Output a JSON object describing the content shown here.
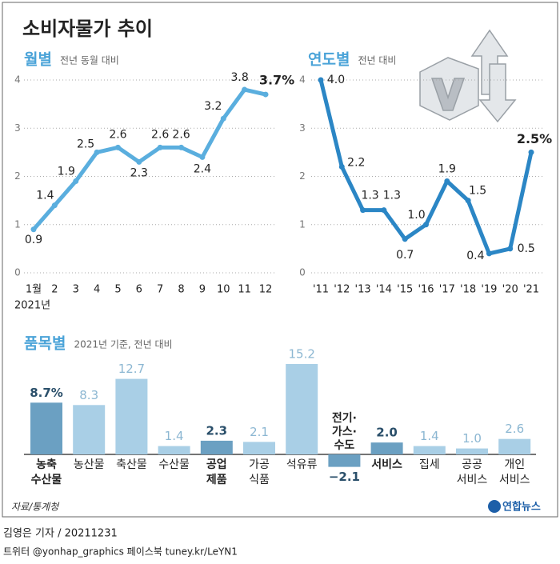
{
  "title": "소비자물가 추이",
  "chart_data": [
    {
      "type": "line",
      "title": "월별",
      "subtitle": "전년 동월 대비",
      "categories": [
        "1월",
        "2",
        "3",
        "4",
        "5",
        "6",
        "7",
        "8",
        "9",
        "10",
        "11",
        "12"
      ],
      "xlabel": "2021년",
      "values": [
        0.9,
        1.4,
        1.9,
        2.5,
        2.6,
        2.3,
        2.6,
        2.6,
        2.4,
        3.2,
        3.8,
        3.7
      ],
      "value_labels": [
        "0.9",
        "1.4",
        "1.9",
        "2.5",
        "2.6",
        "2.3",
        "2.6",
        "2.6",
        "2.4",
        "3.2",
        "3.8",
        "3.7%"
      ],
      "color": "#5aaede",
      "ylim": [
        0,
        4
      ],
      "yticks": [
        0,
        1,
        2,
        3,
        4
      ],
      "grid": true
    },
    {
      "type": "line",
      "title": "연도별",
      "subtitle": "전년 대비",
      "categories": [
        "'11",
        "'12",
        "'13",
        "'14",
        "'15",
        "'16",
        "'17",
        "'18",
        "'19",
        "'20",
        "'21"
      ],
      "values": [
        4.0,
        2.2,
        1.3,
        1.3,
        0.7,
        1.0,
        1.9,
        1.5,
        0.4,
        0.5,
        2.5
      ],
      "value_labels": [
        "4.0",
        "2.2",
        "1.3",
        "1.3",
        "0.7",
        "1.0",
        "1.9",
        "1.5",
        "0.4",
        "0.5",
        "2.5%"
      ],
      "color": "#2b86c5",
      "ylim": [
        0,
        4
      ],
      "yticks": [
        0,
        1,
        2,
        3,
        4
      ],
      "grid": true
    },
    {
      "type": "bar",
      "title": "품목별",
      "subtitle": "2021년 기준, 전년 대비",
      "categories": [
        [
          "농축",
          "수산물"
        ],
        [
          "농산물"
        ],
        [
          "축산물"
        ],
        [
          "수산물"
        ],
        [
          "공업",
          "제품"
        ],
        [
          "가공",
          "식품"
        ],
        [
          "석유류"
        ],
        [
          "전기·",
          "가스·",
          "수도"
        ],
        [
          "서비스"
        ],
        [
          "집세"
        ],
        [
          "공공",
          "서비스"
        ],
        [
          "개인",
          "서비스"
        ]
      ],
      "values": [
        8.7,
        8.3,
        12.7,
        1.4,
        2.3,
        2.1,
        15.2,
        -2.1,
        2.0,
        1.4,
        1.0,
        2.6
      ],
      "value_labels": [
        "8.7%",
        "8.3",
        "12.7",
        "1.4",
        "2.3",
        "2.1",
        "15.2",
        "−2.1",
        "2.0",
        "1.4",
        "1.0",
        "2.6"
      ],
      "highlight": [
        true,
        false,
        false,
        false,
        true,
        false,
        false,
        true,
        true,
        false,
        false,
        false
      ],
      "colors": [
        "#6ba0c2",
        "#a9cfe6",
        "#a9cfe6",
        "#a9cfe6",
        "#6ba0c2",
        "#a9cfe6",
        "#a9cfe6",
        "#6ba0c2",
        "#6ba0c2",
        "#a9cfe6",
        "#a9cfe6",
        "#a9cfe6"
      ]
    }
  ],
  "source": "자료/통계청",
  "logo": "연합뉴스",
  "credit": "김영은 기자 / 20211231",
  "social": "트위터 @yonhap_graphics  페이스북 tuney.kr/LeYN1"
}
